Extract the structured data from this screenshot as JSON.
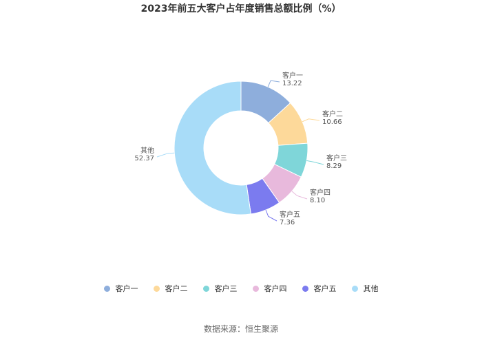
{
  "chart_data": {
    "type": "pie",
    "title": "2023年前五大客户占年度销售总额比例（%）",
    "categories": [
      "客户一",
      "客户二",
      "客户三",
      "客户四",
      "客户五",
      "其他"
    ],
    "values": [
      13.22,
      10.66,
      8.29,
      8.1,
      7.36,
      52.37
    ],
    "value_labels": [
      "13.22",
      "10.66",
      "8.29",
      "8.10",
      "7.36",
      "52.37"
    ],
    "colors": [
      "#8eaedc",
      "#fdd99a",
      "#7fd6d9",
      "#e8b9dc",
      "#7b7bef",
      "#a8dcf8"
    ],
    "hole": "donut",
    "legend_position": "bottom"
  },
  "source": "数据来源：恒生聚源"
}
